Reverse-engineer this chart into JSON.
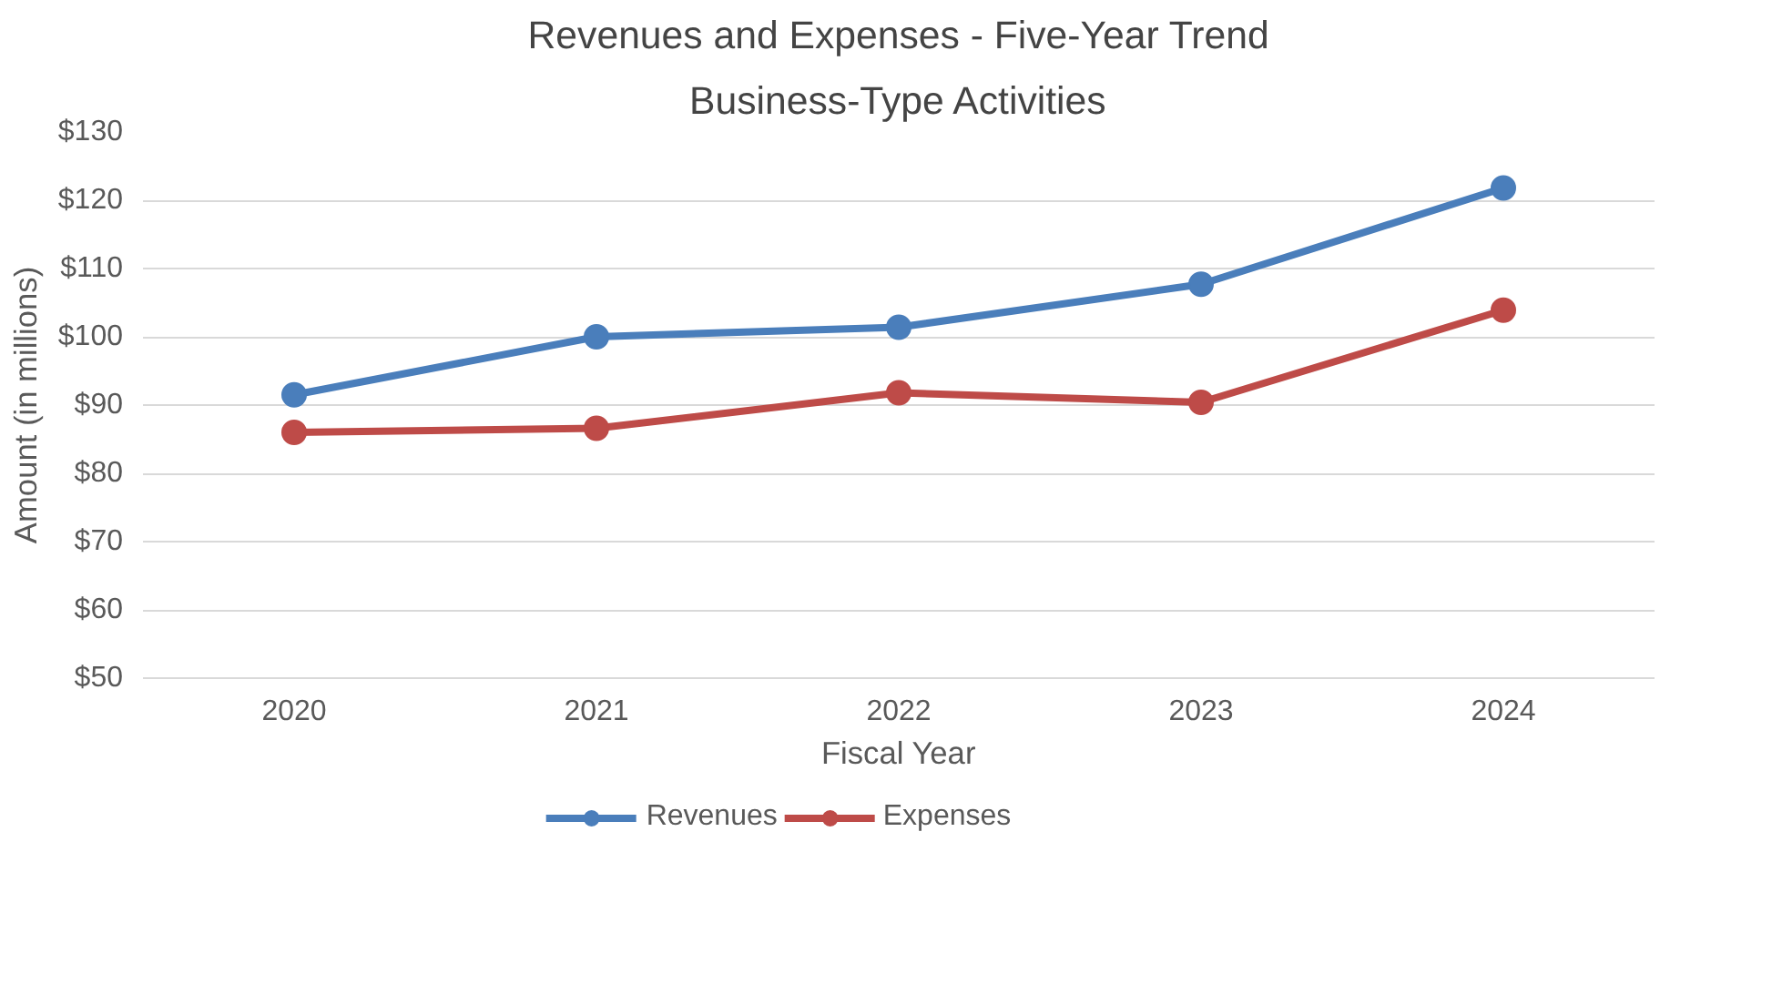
{
  "chart_data": {
    "type": "line",
    "title": "Revenues and Expenses - Five-Year Trend",
    "subtitle": "Business-Type Activities",
    "xlabel": "Fiscal Year",
    "ylabel": "Amount (in millions)",
    "categories": [
      "2020",
      "2021",
      "2022",
      "2023",
      "2024"
    ],
    "series": [
      {
        "name": "Revenues",
        "color": "#4a7ebb",
        "values": [
          91.5,
          100,
          101.4,
          107.7,
          121.8
        ]
      },
      {
        "name": "Expenses",
        "color": "#be4b48",
        "values": [
          86,
          86.6,
          91.8,
          90.4,
          103.9
        ]
      }
    ],
    "ylim": [
      50,
      130
    ],
    "yticks": [
      {
        "value": 50,
        "label": "$50"
      },
      {
        "value": 60,
        "label": "$60"
      },
      {
        "value": 70,
        "label": "$70"
      },
      {
        "value": 80,
        "label": "$80"
      },
      {
        "value": 90,
        "label": "$90"
      },
      {
        "value": 100,
        "label": "$100"
      },
      {
        "value": 110,
        "label": "$110"
      },
      {
        "value": 120,
        "label": "$120"
      },
      {
        "value": 130,
        "label": "$130"
      }
    ],
    "grid": "y",
    "legend": "bottom",
    "marker": "circle",
    "line_style": "solid"
  }
}
